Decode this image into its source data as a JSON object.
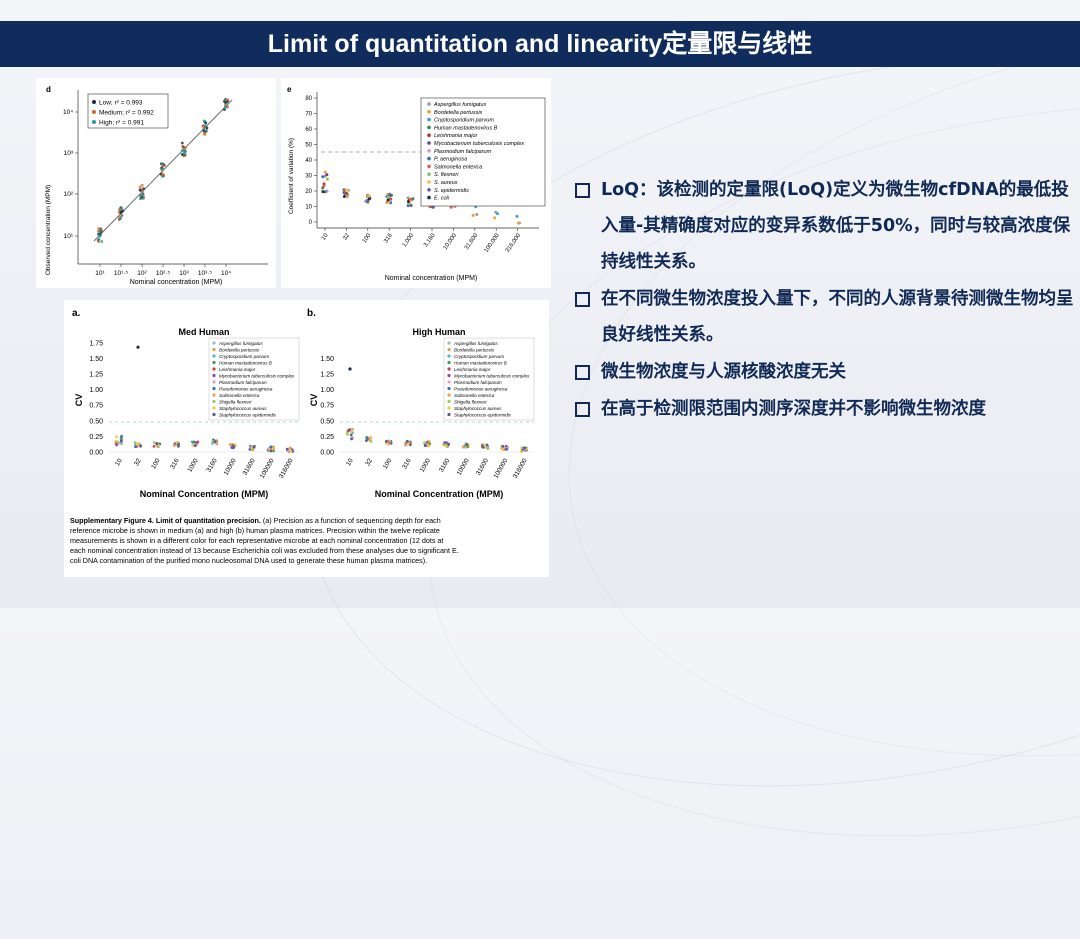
{
  "title": "Limit of quantitation and linearity定量限与线性",
  "bullets": [
    "LoQ：该检测的定量限(LoQ)定义为微生物cfDNA的最低投入量-其精确度对应的变异系数低于50%，同时与较高浓度保持线性关系。",
    "在不同微生物浓度投入量下，不同的人源背景待测微生物均呈良好线性关系。",
    "微生物浓度与人源核酸浓度无关",
    "在高于检测限范围内测序深度并不影响微生物浓度"
  ],
  "figure_d": {
    "panel_label": "d",
    "xlabel": "Nominal concentration (MPM)",
    "ylabel": "Observed concentration (MPM)",
    "x_ticks": [
      "10¹",
      "10¹·⁵",
      "10²",
      "10²·⁵",
      "10³",
      "10³·⁵",
      "10⁴"
    ],
    "y_ticks": [
      "10¹",
      "10²",
      "10³",
      "10⁴"
    ],
    "legend": [
      "Low; r² = 0.993",
      "Medium; r² = 0.992",
      "High; r² = 0.991"
    ],
    "colors": [
      "#1a2a4a",
      "#d86a20",
      "#2a9a9a"
    ]
  },
  "figure_e": {
    "panel_label": "e",
    "xlabel": "Nominal concentration (MPM)",
    "ylabel": "Coefficient of variation (%)",
    "y_ticks": [
      "0",
      "10",
      "20",
      "30",
      "40",
      "50",
      "60",
      "70",
      "80"
    ],
    "x_ticks": [
      "10",
      "32",
      "100",
      "316",
      "1,000",
      "3,160",
      "10,000",
      "31,600",
      "100,000",
      "316,000"
    ],
    "legend": [
      "Aspergillus fumigatus",
      "Bordetella pertussis",
      "Cryptosporidium parvum",
      "Human mastadenovirus B",
      "Leishmania major",
      "Mycobacterium tuberculosis complex",
      "Plasmodium falciparum",
      "P. aeruginosa",
      "Salmonella enterica",
      "S. flexneri",
      "S. aureus",
      "S. epidermidis",
      "E. coli"
    ],
    "legend_colors": [
      "#9a9a9a",
      "#f0a030",
      "#3aa0d0",
      "#2a8a4a",
      "#c03030",
      "#7a3aa0",
      "#d8a0c0",
      "#3070b0",
      "#e06050",
      "#90c060",
      "#f0c040",
      "#6060a0",
      "#203040"
    ]
  },
  "supplement": {
    "label_a": "a.",
    "label_b": "b.",
    "title_a": "Med Human",
    "title_b": "High Human",
    "ylabel": "CV",
    "y_ticks": [
      "0.00",
      "0.25",
      "0.50",
      "0.75",
      "1.00",
      "1.25",
      "1.50",
      "1.75"
    ],
    "y_ticks_b": [
      "0.00",
      "0.25",
      "0.50",
      "0.75",
      "1.00",
      "1.25",
      "1.50"
    ],
    "x_ticks": [
      "10",
      "32",
      "100",
      "316",
      "1000",
      "3160",
      "10000",
      "31600",
      "100000",
      "316000"
    ],
    "xlabel": "Nominal Concentration (MPM)",
    "legend": [
      "Aspergillus fumigatus",
      "Bordetella pertussis",
      "Cryptosporidium parvum",
      "Human mastadenovirus B",
      "Leishmania major",
      "Mycobacterium tuberculosis complex",
      "Plasmodium falciparum",
      "Pseudomonas aeruginosa",
      "Salmonella enterica",
      "Shigella flexneri",
      "Staphylococcus aureus",
      "Staphylococcus epidermidis"
    ],
    "caption_bold": "Supplementary Figure 4. Limit of quantitation precision.",
    "caption_lines": [
      " (a) Precision as a function of sequencing depth for each",
      "reference microbe is shown in medium (a) and high (b) human plasma matrices. Precision within the twelve replicate",
      "measurements is shown in a different color for each representative microbe at each nominal concentration (12 dots at",
      "each nominal concentration instead of 13 because Escherichia coli was excluded from these analyses due to significant E.",
      "coli DNA contamination of the purified mono nucleosomal DNA used to generate these human plasma matrices)."
    ]
  }
}
